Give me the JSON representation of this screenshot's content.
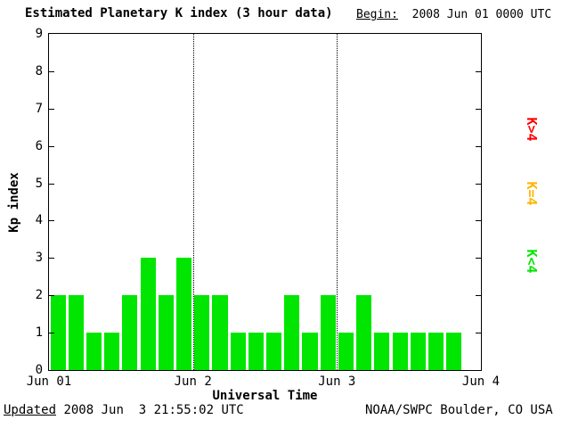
{
  "header": {
    "title": "Estimated Planetary K index (3 hour data)",
    "begin_label": "Begin:",
    "begin_value": "  2008 Jun 01 0000 UTC"
  },
  "footer": {
    "updated_label": "Updated",
    "updated_value": " 2008 Jun  3 21:55:02 UTC",
    "source": "NOAA/SWPC Boulder, CO USA"
  },
  "chart_data": {
    "type": "bar",
    "title": "Estimated Planetary K index (3 hour data)",
    "xlabel": "Universal Time",
    "ylabel": "Kp index",
    "ylim": [
      0,
      9
    ],
    "yticks": [
      0,
      1,
      2,
      3,
      4,
      5,
      6,
      7,
      8,
      9
    ],
    "xtick_labels": [
      "Jun 01",
      "Jun 2",
      "Jun 3",
      "Jun 4"
    ],
    "days": 3,
    "slots_per_day": 8,
    "hours_per_slot": 3,
    "values": [
      2,
      2,
      1,
      1,
      2,
      3,
      2,
      3,
      2,
      2,
      1,
      1,
      1,
      2,
      1,
      2,
      1,
      2,
      1,
      1,
      1,
      1,
      1
    ],
    "colors": {
      "lt4": "#00e600",
      "eq4": "#ffb400",
      "gt4": "#ff0000"
    },
    "grid": "dotted vertical lines at day boundaries",
    "legend_position": "right",
    "legend": [
      {
        "name": "k-gt-4",
        "label": "K>4",
        "color": "#ff0000"
      },
      {
        "name": "k-eq-4",
        "label": "K=4",
        "color": "#ffb400"
      },
      {
        "name": "k-lt-4",
        "label": "K<4",
        "color": "#00e600"
      }
    ]
  }
}
